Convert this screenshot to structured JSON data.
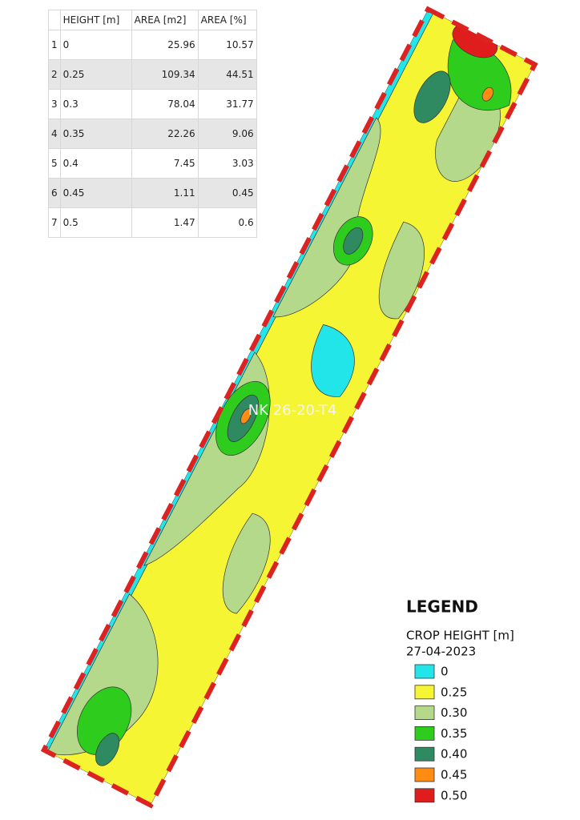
{
  "table": {
    "header": [
      "HEIGHT [m]",
      "AREA [m2]",
      "AREA [%]"
    ],
    "rows": [
      [
        "1",
        "0",
        "25.96",
        "10.57"
      ],
      [
        "2",
        "0.25",
        "109.34",
        "44.51"
      ],
      [
        "3",
        "0.3",
        "78.04",
        "31.77"
      ],
      [
        "4",
        "0.35",
        "22.26",
        "9.06"
      ],
      [
        "5",
        "0.4",
        "7.45",
        "3.03"
      ],
      [
        "6",
        "0.45",
        "1.11",
        "0.45"
      ],
      [
        "7",
        "0.5",
        "1.47",
        "0.6"
      ]
    ]
  },
  "map": {
    "field_label": "NK 26-20-T4"
  },
  "legend": {
    "title": "LEGEND",
    "subtitle": "CROP HEIGHT [m]",
    "date": "27-04-2023",
    "items": [
      {
        "label": "0",
        "color": "#22e5ea"
      },
      {
        "label": "0.25",
        "color": "#f5f533"
      },
      {
        "label": "0.30",
        "color": "#b5d98a"
      },
      {
        "label": "0.35",
        "color": "#2ecc1c"
      },
      {
        "label": "0.40",
        "color": "#2f8a62"
      },
      {
        "label": "0.45",
        "color": "#ff8c12"
      },
      {
        "label": "0.50",
        "color": "#e01d1d"
      }
    ]
  }
}
